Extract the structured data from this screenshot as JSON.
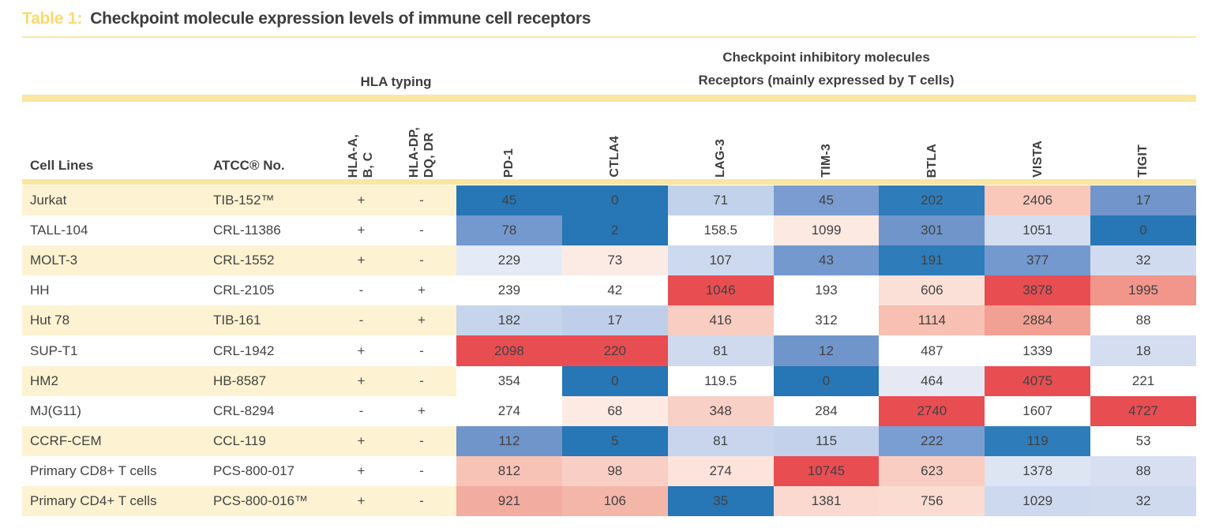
{
  "title": {
    "label": "Table 1:",
    "text": "Checkpoint molecule expression levels of immune cell receptors"
  },
  "group_headers": {
    "hla": "HLA typing",
    "checkpoint_line1": "Checkpoint inhibitory molecules",
    "checkpoint_line2": "Receptors (mainly expressed by T cells)"
  },
  "column_headers": {
    "cell_lines": "Cell Lines",
    "atcc_no": "ATCC® No.",
    "hla": [
      "HLA-A,\nB, C",
      "HLA-DP,\nDQ, DR"
    ],
    "receptors": [
      "PD-1",
      "CTLA4",
      "LAG-3",
      "TIM-3",
      "BTLA",
      "VISTA",
      "TIGIT"
    ]
  },
  "colors": {
    "accent_gold": "#fbd96e",
    "divider_yellow": "#f9e6a1",
    "row_cream": "#fdf3d2",
    "text_dark": "#3d3d3d",
    "heat_low_blue": "#2776b5",
    "heat_mid_white": "#ffffff",
    "heat_high_red": "#e84d52"
  },
  "chart_data": {
    "type": "heatmap",
    "title": "Checkpoint molecule expression levels of immune cell receptors",
    "columns": [
      "PD-1",
      "CTLA4",
      "LAG-3",
      "TIM-3",
      "BTLA",
      "VISTA",
      "TIGIT"
    ],
    "color_scale": {
      "low": "#2776b5",
      "mid": "#ffffff",
      "high": "#e84d52",
      "note": "blue = low, white = mid, red = high within each column"
    },
    "rows": [
      {
        "cell_line": "Jurkat",
        "atcc_no": "TIB-152™",
        "hla_a_b_c": "+",
        "hla_dp_dq_dr": "-",
        "values": [
          45,
          0,
          71,
          45,
          202,
          2406,
          17
        ],
        "cell_colors": [
          "#2776b5",
          "#2776b5",
          "#c3d2eb",
          "#7b9cd0",
          "#2f7cba",
          "#f9c8bb",
          "#7296cb"
        ]
      },
      {
        "cell_line": "TALL-104",
        "atcc_no": "CRL-11386",
        "hla_a_b_c": "+",
        "hla_dp_dq_dr": "-",
        "values": [
          78,
          2,
          158.5,
          1099,
          301,
          1051,
          0
        ],
        "cell_colors": [
          "#7499ce",
          "#2776b5",
          "#ffffff",
          "#fce9e2",
          "#6f95ca",
          "#d4def0",
          "#2776b5"
        ]
      },
      {
        "cell_line": "MOLT-3",
        "atcc_no": "CRL-1552",
        "hla_a_b_c": "+",
        "hla_dp_dq_dr": "-",
        "values": [
          229,
          73,
          107,
          43,
          191,
          377,
          32
        ],
        "cell_colors": [
          "#e4eaf6",
          "#fcebe4",
          "#ccd9ee",
          "#7499ce",
          "#2f7cba",
          "#7499ce",
          "#d0dbef"
        ]
      },
      {
        "cell_line": "HH",
        "atcc_no": "CRL-2105",
        "hla_a_b_c": "-",
        "hla_dp_dq_dr": "+",
        "values": [
          239,
          42,
          1046,
          193,
          606,
          3878,
          1995
        ],
        "cell_colors": [
          "#ffffff",
          "#ffffff",
          "#e84d52",
          "#ffffff",
          "#fbe0d8",
          "#e84d52",
          "#f2958a"
        ]
      },
      {
        "cell_line": "Hut 78",
        "atcc_no": "TIB-161",
        "hla_a_b_c": "-",
        "hla_dp_dq_dr": "+",
        "values": [
          182,
          17,
          416,
          312,
          1114,
          2884,
          88
        ],
        "cell_colors": [
          "#c6d4ec",
          "#c0cfe9",
          "#f8cdc2",
          "#ffffff",
          "#f7c0b2",
          "#f2a093",
          "#ffffff"
        ]
      },
      {
        "cell_line": "SUP-T1",
        "atcc_no": "CRL-1942",
        "hla_a_b_c": "+",
        "hla_dp_dq_dr": "-",
        "values": [
          2098,
          220,
          81,
          12,
          487,
          1339,
          18
        ],
        "cell_colors": [
          "#e84d52",
          "#e84d52",
          "#cfdaef",
          "#7095cb",
          "#ffffff",
          "#ffffff",
          "#d5ddf0"
        ]
      },
      {
        "cell_line": "HM2",
        "atcc_no": "HB-8587",
        "hla_a_b_c": "+",
        "hla_dp_dq_dr": "-",
        "values": [
          354,
          0,
          119.5,
          0,
          464,
          4075,
          221
        ],
        "cell_colors": [
          "#ffffff",
          "#2776b5",
          "#ffffff",
          "#2776b5",
          "#e6e9f4",
          "#e84d52",
          "#ffffff"
        ]
      },
      {
        "cell_line": "MJ(G11)",
        "atcc_no": "CRL-8294",
        "hla_a_b_c": "-",
        "hla_dp_dq_dr": "+",
        "values": [
          274,
          68,
          348,
          284,
          2740,
          1607,
          4727
        ],
        "cell_colors": [
          "#ffffff",
          "#fdeae3",
          "#f9d0c6",
          "#ffffff",
          "#e84d52",
          "#ffffff",
          "#e84d52"
        ]
      },
      {
        "cell_line": "CCRF-CEM",
        "atcc_no": "CCL-119",
        "hla_a_b_c": "+",
        "hla_dp_dq_dr": "-",
        "values": [
          112,
          5,
          81,
          115,
          222,
          119,
          53
        ],
        "cell_colors": [
          "#7095cb",
          "#2776b5",
          "#c8d5ec",
          "#c3d1ea",
          "#7b9ed2",
          "#2f7cba",
          "#ffffff"
        ]
      },
      {
        "cell_line": "Primary CD8+ T cells",
        "atcc_no": "PCS-800-017",
        "hla_a_b_c": "+",
        "hla_dp_dq_dr": "-",
        "values": [
          812,
          98,
          274,
          10745,
          623,
          1378,
          88
        ],
        "cell_colors": [
          "#f7c3b6",
          "#f9cfc5",
          "#fce4dc",
          "#e84d52",
          "#f9cdc2",
          "#dde5f3",
          "#d7dff1"
        ]
      },
      {
        "cell_line": "Primary CD4+ T cells",
        "atcc_no": "PCS-800-016™",
        "hla_a_b_c": "+",
        "hla_dp_dq_dr": "-",
        "values": [
          921,
          106,
          35,
          1381,
          756,
          1029,
          32
        ],
        "cell_colors": [
          "#f3aca0",
          "#f5b6aa",
          "#2776b5",
          "#fbd9d0",
          "#fadcd2",
          "#cdd9ee",
          "#cfdaee"
        ]
      }
    ]
  }
}
